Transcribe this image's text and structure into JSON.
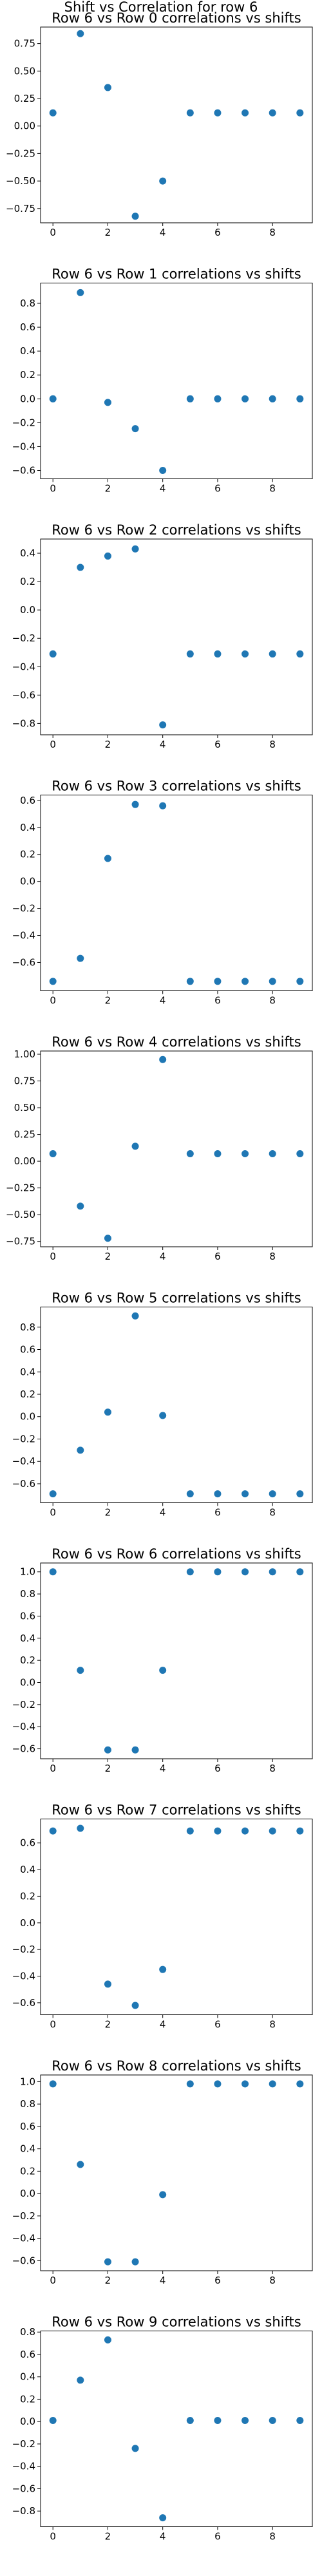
{
  "figure_title": "Shift vs Correlation for row 6",
  "chart_data": [
    {
      "type": "scatter",
      "title": "Row 6 vs Row 0 correlations vs shifts",
      "x": [
        0,
        1,
        2,
        3,
        4,
        5,
        6,
        7,
        8,
        9
      ],
      "y": [
        0.12,
        0.84,
        0.35,
        -0.82,
        -0.5,
        0.12,
        0.12,
        0.12,
        0.12,
        0.12
      ],
      "xlim": [
        -0.45,
        9.45
      ],
      "ylim": [
        -0.88,
        0.9
      ],
      "xticks": [
        0,
        2,
        4,
        6,
        8
      ],
      "yticks": [
        0.75,
        0.5,
        0.25,
        0.0,
        -0.25,
        -0.5,
        -0.75
      ]
    },
    {
      "type": "scatter",
      "title": "Row 6 vs Row 1 correlations vs shifts",
      "x": [
        0,
        1,
        2,
        3,
        4,
        5,
        6,
        7,
        8,
        9
      ],
      "y": [
        0.0,
        0.89,
        -0.03,
        -0.25,
        -0.6,
        0.0,
        0.0,
        0.0,
        0.0,
        0.0
      ],
      "xlim": [
        -0.45,
        9.45
      ],
      "ylim": [
        -0.67,
        0.97
      ],
      "xticks": [
        0,
        2,
        4,
        6,
        8
      ],
      "yticks": [
        0.8,
        0.6,
        0.4,
        0.2,
        0.0,
        -0.2,
        -0.4,
        -0.6
      ]
    },
    {
      "type": "scatter",
      "title": "Row 6 vs Row 2 correlations vs shifts",
      "x": [
        0,
        1,
        2,
        3,
        4,
        5,
        6,
        7,
        8,
        9
      ],
      "y": [
        -0.31,
        0.3,
        0.38,
        0.43,
        -0.81,
        -0.31,
        -0.31,
        -0.31,
        -0.31,
        -0.31
      ],
      "xlim": [
        -0.45,
        9.45
      ],
      "ylim": [
        -0.88,
        0.5
      ],
      "xticks": [
        0,
        2,
        4,
        6,
        8
      ],
      "yticks": [
        0.4,
        0.2,
        0.0,
        -0.2,
        -0.4,
        -0.6,
        -0.8
      ]
    },
    {
      "type": "scatter",
      "title": "Row 6 vs Row 3 correlations vs shifts",
      "x": [
        0,
        1,
        2,
        3,
        4,
        5,
        6,
        7,
        8,
        9
      ],
      "y": [
        -0.74,
        -0.57,
        0.17,
        0.57,
        0.56,
        -0.74,
        -0.74,
        -0.74,
        -0.74,
        -0.74
      ],
      "xlim": [
        -0.45,
        9.45
      ],
      "ylim": [
        -0.81,
        0.64
      ],
      "xticks": [
        0,
        2,
        4,
        6,
        8
      ],
      "yticks": [
        0.6,
        0.4,
        0.2,
        0.0,
        -0.2,
        -0.4,
        -0.6
      ]
    },
    {
      "type": "scatter",
      "title": "Row 6 vs Row 4 correlations vs shifts",
      "x": [
        0,
        1,
        2,
        3,
        4,
        5,
        6,
        7,
        8,
        9
      ],
      "y": [
        0.07,
        -0.42,
        -0.72,
        0.14,
        0.95,
        0.07,
        0.07,
        0.07,
        0.07,
        0.07
      ],
      "xlim": [
        -0.45,
        9.45
      ],
      "ylim": [
        -0.8,
        1.03
      ],
      "xticks": [
        0,
        2,
        4,
        6,
        8
      ],
      "yticks": [
        1.0,
        0.75,
        0.5,
        0.25,
        0.0,
        -0.25,
        -0.5,
        -0.75
      ]
    },
    {
      "type": "scatter",
      "title": "Row 6 vs Row 5 correlations vs shifts",
      "x": [
        0,
        1,
        2,
        3,
        4,
        5,
        6,
        7,
        8,
        9
      ],
      "y": [
        -0.69,
        -0.3,
        0.04,
        0.9,
        0.01,
        -0.69,
        -0.69,
        -0.69,
        -0.69,
        -0.69
      ],
      "xlim": [
        -0.45,
        9.45
      ],
      "ylim": [
        -0.77,
        0.98
      ],
      "xticks": [
        0,
        2,
        4,
        6,
        8
      ],
      "yticks": [
        0.8,
        0.6,
        0.4,
        0.2,
        0.0,
        -0.2,
        -0.4,
        -0.6
      ]
    },
    {
      "type": "scatter",
      "title": "Row 6 vs Row 6 correlations vs shifts",
      "x": [
        0,
        1,
        2,
        3,
        4,
        5,
        6,
        7,
        8,
        9
      ],
      "y": [
        1.0,
        0.11,
        -0.61,
        -0.61,
        0.11,
        1.0,
        1.0,
        1.0,
        1.0,
        1.0
      ],
      "xlim": [
        -0.45,
        9.45
      ],
      "ylim": [
        -0.69,
        1.08
      ],
      "xticks": [
        0,
        2,
        4,
        6,
        8
      ],
      "yticks": [
        1.0,
        0.8,
        0.6,
        0.4,
        0.2,
        0.0,
        -0.2,
        -0.4,
        -0.6
      ]
    },
    {
      "type": "scatter",
      "title": "Row 6 vs Row 7 correlations vs shifts",
      "x": [
        0,
        1,
        2,
        3,
        4,
        5,
        6,
        7,
        8,
        9
      ],
      "y": [
        0.69,
        0.71,
        -0.46,
        -0.62,
        -0.35,
        0.69,
        0.69,
        0.69,
        0.69,
        0.69
      ],
      "xlim": [
        -0.45,
        9.45
      ],
      "ylim": [
        -0.69,
        0.78
      ],
      "xticks": [
        0,
        2,
        4,
        6,
        8
      ],
      "yticks": [
        0.6,
        0.4,
        0.2,
        0.0,
        -0.2,
        -0.4,
        -0.6
      ]
    },
    {
      "type": "scatter",
      "title": "Row 6 vs Row 8 correlations vs shifts",
      "x": [
        0,
        1,
        2,
        3,
        4,
        5,
        6,
        7,
        8,
        9
      ],
      "y": [
        0.98,
        0.26,
        -0.61,
        -0.61,
        -0.01,
        0.98,
        0.98,
        0.98,
        0.98,
        0.98
      ],
      "xlim": [
        -0.45,
        9.45
      ],
      "ylim": [
        -0.69,
        1.06
      ],
      "xticks": [
        0,
        2,
        4,
        6,
        8
      ],
      "yticks": [
        1.0,
        0.8,
        0.6,
        0.4,
        0.2,
        0.0,
        -0.2,
        -0.4,
        -0.6
      ]
    },
    {
      "type": "scatter",
      "title": "Row 6 vs Row 9 correlations vs shifts",
      "x": [
        0,
        1,
        2,
        3,
        4,
        5,
        6,
        7,
        8,
        9
      ],
      "y": [
        0.01,
        0.37,
        0.73,
        -0.24,
        -0.86,
        0.01,
        0.01,
        0.01,
        0.01,
        0.01
      ],
      "xlim": [
        -0.45,
        9.45
      ],
      "ylim": [
        -0.94,
        0.81
      ],
      "xticks": [
        0,
        2,
        4,
        6,
        8
      ],
      "yticks": [
        0.8,
        0.6,
        0.4,
        0.2,
        0.0,
        -0.2,
        -0.4,
        -0.6,
        -0.8
      ]
    }
  ]
}
